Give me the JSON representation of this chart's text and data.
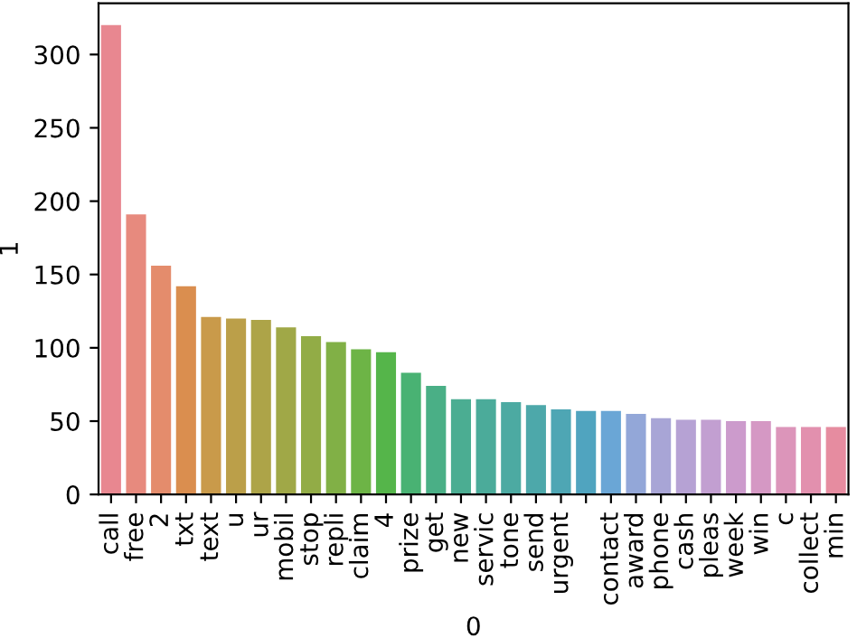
{
  "chart_data": {
    "type": "bar",
    "xlabel": "0",
    "ylabel": "1",
    "categories": [
      "call",
      "free",
      "2",
      "txt",
      "text",
      "u",
      "ur",
      "mobil",
      "stop",
      "repli",
      "claim",
      "4",
      "prize",
      "get",
      "new",
      "servic",
      "tone",
      "send",
      "urgent",
      null,
      "contact",
      "award",
      "phone",
      "cash",
      "pleas",
      "week",
      "win",
      "c",
      "collect",
      "min"
    ],
    "values": [
      320,
      191,
      156,
      142,
      121,
      120,
      119,
      114,
      108,
      104,
      99,
      97,
      83,
      74,
      65,
      65,
      63,
      61,
      58,
      57,
      57,
      55,
      52,
      51,
      51,
      50,
      50,
      46,
      46,
      46
    ],
    "colors": [
      "#e88790",
      "#e78a7e",
      "#e48c6c",
      "#da8e4f",
      "#c99a4a",
      "#bb9f49",
      "#ada448",
      "#a0a847",
      "#92ac46",
      "#81b046",
      "#6db446",
      "#55b54a",
      "#49b273",
      "#4aaf86",
      "#4bad92",
      "#4bab9a",
      "#4caaa2",
      "#4da8aa",
      "#4ea6b4",
      "#50a4bf",
      "#6aa6d6",
      "#93a7d8",
      "#a8a5d6",
      "#b6a2d4",
      "#c29fd1",
      "#cc9bcc",
      "#d598c4",
      "#dc95ba",
      "#e290ae",
      "#e68ca0"
    ],
    "ylim": [
      0,
      335
    ],
    "yticks": [
      0,
      50,
      100,
      150,
      200,
      250,
      300
    ],
    "grid": false
  }
}
